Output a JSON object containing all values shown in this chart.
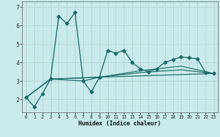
{
  "xlabel": "Humidex (Indice chaleur)",
  "background_color": "#c8eaea",
  "grid_color": "#b0cccc",
  "line_color": "#1a6b6b",
  "xlim": [
    -0.5,
    23.5
  ],
  "ylim": [
    1.3,
    7.3
  ],
  "yticks": [
    2,
    3,
    4,
    5,
    6,
    7
  ],
  "xticks": [
    0,
    1,
    2,
    3,
    4,
    5,
    6,
    7,
    8,
    9,
    10,
    11,
    12,
    13,
    14,
    15,
    16,
    17,
    18,
    19,
    20,
    21,
    22,
    23
  ],
  "series": [
    {
      "x": [
        0,
        1,
        2,
        3,
        4,
        5,
        6,
        7,
        8,
        9,
        10,
        11,
        12,
        13,
        14,
        15,
        16,
        17,
        18,
        19,
        20,
        21,
        22,
        23
      ],
      "y": [
        2.1,
        1.6,
        2.3,
        3.1,
        6.5,
        6.1,
        6.7,
        3.0,
        2.4,
        3.2,
        4.65,
        4.5,
        4.65,
        4.0,
        3.65,
        3.5,
        3.65,
        4.0,
        4.15,
        4.3,
        4.25,
        4.2,
        3.45,
        3.4
      ],
      "marker": "D",
      "markersize": 2.5,
      "linewidth": 1.0
    },
    {
      "x": [
        0,
        3,
        9,
        23
      ],
      "y": [
        2.1,
        3.1,
        3.2,
        3.4
      ],
      "marker": null,
      "linewidth": 0.9
    },
    {
      "x": [
        0,
        3,
        9,
        14,
        19,
        23
      ],
      "y": [
        2.1,
        3.1,
        3.2,
        3.55,
        3.8,
        3.4
      ],
      "marker": null,
      "linewidth": 0.9
    },
    {
      "x": [
        0,
        3,
        7,
        9,
        14,
        19,
        23
      ],
      "y": [
        2.1,
        3.1,
        3.0,
        3.2,
        3.45,
        3.6,
        3.4
      ],
      "marker": null,
      "linewidth": 0.9
    }
  ]
}
